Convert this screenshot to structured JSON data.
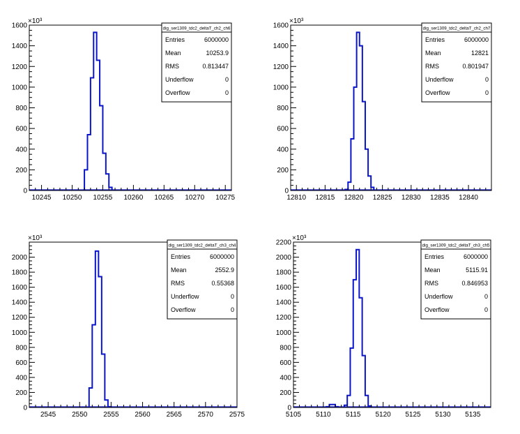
{
  "chart_data": [
    {
      "type": "histogram",
      "title": "",
      "exponent_label": "×10³",
      "xlim": [
        10243,
        10276
      ],
      "ylim": [
        0,
        1600
      ],
      "x_ticks": [
        10245,
        10250,
        10255,
        10260,
        10265,
        10270,
        10275
      ],
      "y_ticks": [
        0,
        200,
        400,
        600,
        800,
        1000,
        1200,
        1400,
        1600
      ],
      "x_tick_labels": [
        "10245",
        "10250",
        "10255",
        "10260",
        "10265",
        "10270",
        "10275"
      ],
      "y_tick_labels": [
        "0",
        "200",
        "400",
        "600",
        "800",
        "1000",
        "1200",
        "1400",
        "1600"
      ],
      "bin_width": 0.5,
      "bins": [
        [
          10251.5,
          3
        ],
        [
          10252,
          200
        ],
        [
          10252.5,
          540
        ],
        [
          10253,
          1090
        ],
        [
          10253.5,
          1530
        ],
        [
          10254,
          1260
        ],
        [
          10254.5,
          820
        ],
        [
          10255,
          360
        ],
        [
          10255.5,
          160
        ],
        [
          10256,
          30
        ]
      ],
      "stats": {
        "name": "dig_ser1309_tdc2_deltaT_ch2_ch6",
        "rows": [
          {
            "label": "Entries",
            "value": "6000000"
          },
          {
            "label": "Mean",
            "value": "10253.9"
          },
          {
            "label": "RMS",
            "value": "0.813447"
          },
          {
            "label": "Underflow",
            "value": "0"
          },
          {
            "label": "Overflow",
            "value": "0"
          }
        ]
      }
    },
    {
      "type": "histogram",
      "title": "",
      "exponent_label": "×10³",
      "xlim": [
        12809,
        12844
      ],
      "ylim": [
        0,
        1600
      ],
      "x_ticks": [
        12810,
        12815,
        12820,
        12825,
        12830,
        12835,
        12840
      ],
      "y_ticks": [
        0,
        200,
        400,
        600,
        800,
        1000,
        1200,
        1400,
        1600
      ],
      "x_tick_labels": [
        "12810",
        "12815",
        "12820",
        "12825",
        "12830",
        "12835",
        "12840"
      ],
      "y_tick_labels": [
        "0",
        "200",
        "400",
        "600",
        "800",
        "1000",
        "1200",
        "1400",
        "1600"
      ],
      "bin_width": 0.5,
      "bins": [
        [
          12818.5,
          10
        ],
        [
          12819,
          80
        ],
        [
          12819.5,
          500
        ],
        [
          12820,
          1000
        ],
        [
          12820.5,
          1530
        ],
        [
          12821,
          1400
        ],
        [
          12821.5,
          860
        ],
        [
          12822,
          400
        ],
        [
          12822.5,
          140
        ],
        [
          12823,
          30
        ]
      ],
      "stats": {
        "name": "dig_ser1309_tdc2_deltaT_ch2_ch7",
        "rows": [
          {
            "label": "Entries",
            "value": "6000000"
          },
          {
            "label": "Mean",
            "value": "12821"
          },
          {
            "label": "RMS",
            "value": "0.801947"
          },
          {
            "label": "Underflow",
            "value": "0"
          },
          {
            "label": "Overflow",
            "value": "0"
          }
        ]
      }
    },
    {
      "type": "histogram",
      "title": "",
      "exponent_label": "×10³",
      "xlim": [
        2542,
        2575
      ],
      "ylim": [
        0,
        2200
      ],
      "x_ticks": [
        2545,
        2550,
        2555,
        2560,
        2565,
        2570,
        2575
      ],
      "y_ticks": [
        0,
        200,
        400,
        600,
        800,
        1000,
        1200,
        1400,
        1600,
        1800,
        2000
      ],
      "x_tick_labels": [
        "2545",
        "2550",
        "2555",
        "2560",
        "2565",
        "2570",
        "2575"
      ],
      "y_tick_labels": [
        "0",
        "200",
        "400",
        "600",
        "800",
        "1000",
        "1200",
        "1400",
        "1600",
        "1800",
        "2000"
      ],
      "bin_width": 0.5,
      "bins": [
        [
          2551.5,
          260
        ],
        [
          2552,
          1100
        ],
        [
          2552.5,
          2080
        ],
        [
          2553,
          1740
        ],
        [
          2553.5,
          710
        ],
        [
          2554,
          100
        ],
        [
          2554.5,
          10
        ]
      ],
      "stats": {
        "name": "dig_ser1309_tdc2_deltaT_ch3_ch4",
        "rows": [
          {
            "label": "Entries",
            "value": "6000000"
          },
          {
            "label": "Mean",
            "value": "2552.9"
          },
          {
            "label": "RMS",
            "value": "0.55368"
          },
          {
            "label": "Underflow",
            "value": "0"
          },
          {
            "label": "Overflow",
            "value": "0"
          }
        ]
      }
    },
    {
      "type": "histogram",
      "title": "",
      "exponent_label": "×10³",
      "xlim": [
        5105,
        5138
      ],
      "ylim": [
        0,
        2200
      ],
      "x_ticks": [
        5105,
        5110,
        5115,
        5120,
        5125,
        5130,
        5135
      ],
      "y_ticks": [
        0,
        200,
        400,
        600,
        800,
        1000,
        1200,
        1400,
        1600,
        1800,
        2000,
        2200
      ],
      "x_tick_labels": [
        "5105",
        "5110",
        "5115",
        "5120",
        "5125",
        "5130",
        "5135"
      ],
      "y_tick_labels": [
        "0",
        "200",
        "400",
        "600",
        "800",
        "1000",
        "1200",
        "1400",
        "1600",
        "1800",
        "2000",
        "2200"
      ],
      "bin_width": 0.5,
      "bins": [
        [
          5110.5,
          10
        ],
        [
          5111,
          40
        ],
        [
          5111.5,
          40
        ],
        [
          5112,
          10
        ],
        [
          5113,
          5
        ],
        [
          5113.5,
          30
        ],
        [
          5114,
          160
        ],
        [
          5114.5,
          790
        ],
        [
          5115,
          1700
        ],
        [
          5115.5,
          2100
        ],
        [
          5116,
          1460
        ],
        [
          5116.5,
          690
        ],
        [
          5117,
          160
        ],
        [
          5117.5,
          20
        ]
      ],
      "stats": {
        "name": "dig_ser1309_tdc2_deltaT_ch3_ch5",
        "rows": [
          {
            "label": "Entries",
            "value": "6000000"
          },
          {
            "label": "Mean",
            "value": "5115.91"
          },
          {
            "label": "RMS",
            "value": "0.846953"
          },
          {
            "label": "Underflow",
            "value": "0"
          },
          {
            "label": "Overflow",
            "value": "0"
          }
        ]
      }
    }
  ],
  "colors": {
    "histogram_line": "#0a14c8",
    "axis": "#000000",
    "background": "#ffffff"
  }
}
